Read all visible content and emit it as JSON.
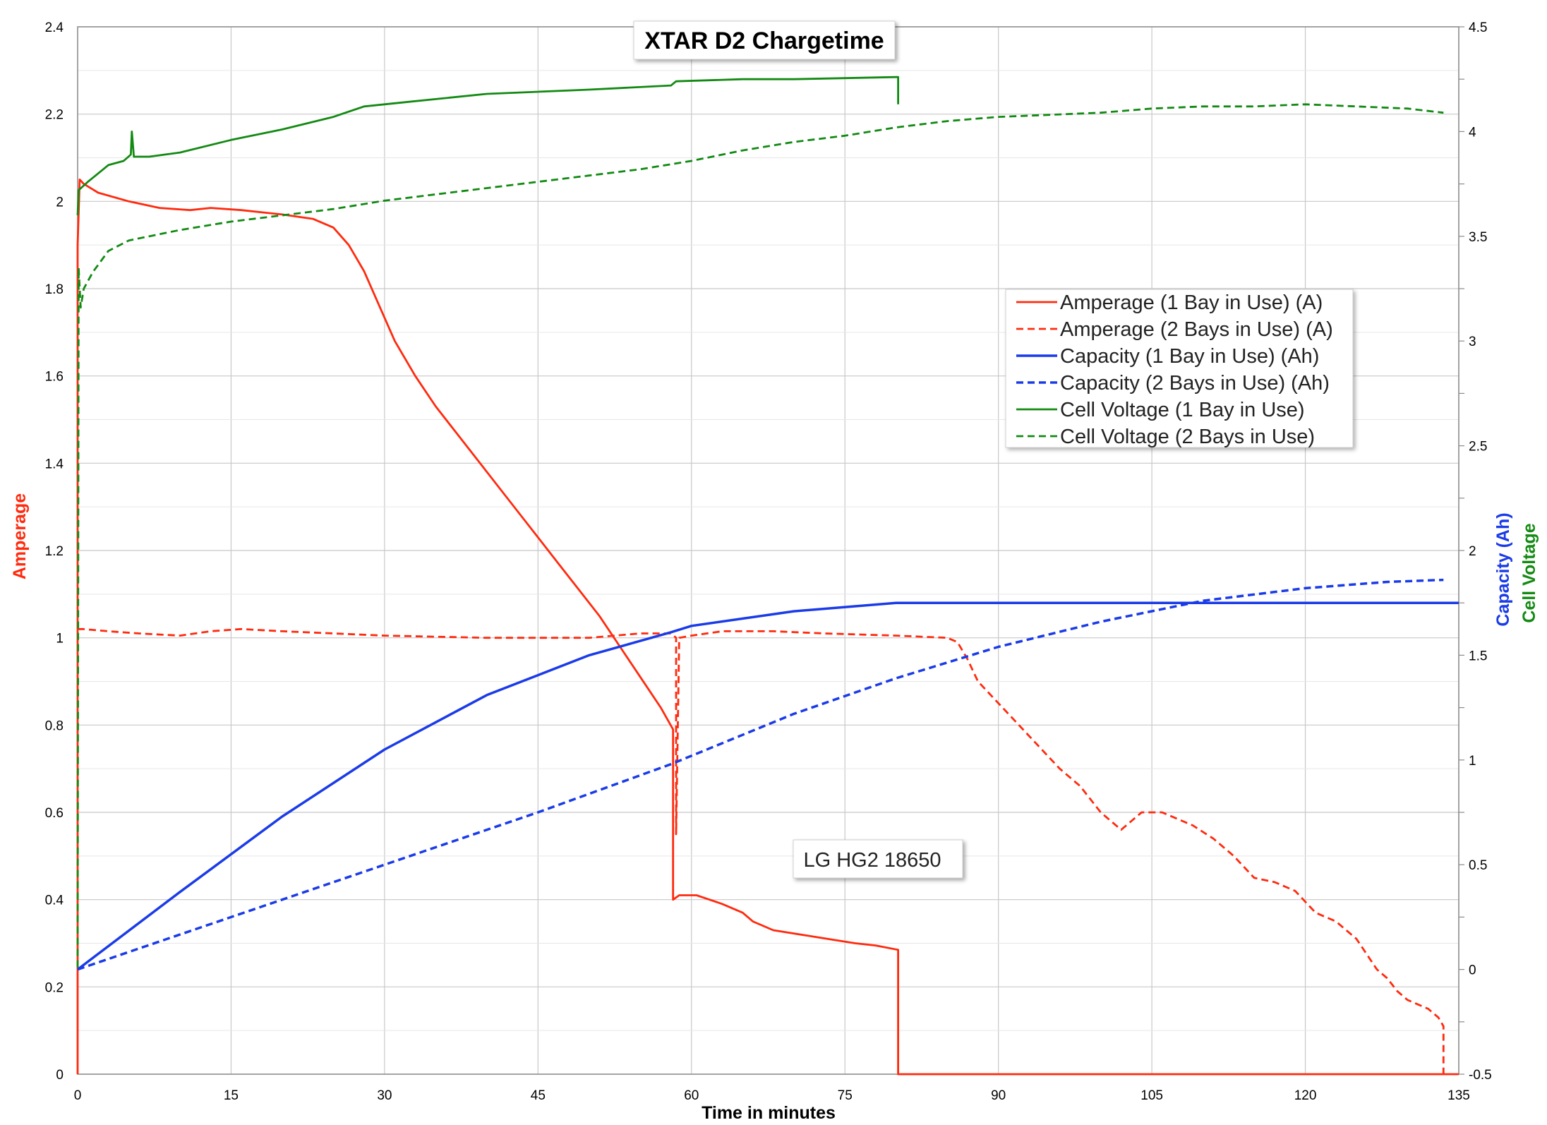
{
  "chart_data": {
    "type": "line",
    "title": "XTAR D2 Chargetime",
    "annotation": "LG HG2 18650",
    "xlabel": "Time in minutes",
    "ylabel_left": "Amperage",
    "ylabel_right_1": "Capacity (Ah)",
    "ylabel_right_2": "Cell Voltage",
    "xlim": [
      0,
      135
    ],
    "ylim_left": [
      0,
      2.4
    ],
    "ylim_right": [
      -0.5,
      4.5
    ],
    "x_ticks": [
      "0",
      "15",
      "30",
      "45",
      "60",
      "75",
      "90",
      "105",
      "120",
      "135"
    ],
    "y_left_ticks": [
      "0",
      "0.2",
      "0.4",
      "0.6",
      "0.8",
      "1",
      "1.2",
      "1.4",
      "1.6",
      "1.8",
      "2",
      "2.2",
      "2.4"
    ],
    "y_right_ticks": [
      "-0.5",
      "0",
      "0.5",
      "1",
      "1.5",
      "2",
      "2.5",
      "3",
      "3.5",
      "4",
      "4.5"
    ],
    "grid": true,
    "legend_position": "center-right",
    "colors": {
      "amperage": "#ff2a0e",
      "capacity": "#1a3be8",
      "voltage": "#138a13",
      "left_label": "#ff2a0e",
      "capacity_label": "#1a3be8",
      "voltage_label": "#138a13"
    },
    "series": [
      {
        "name": "Amperage (1 Bay in Use) (A)",
        "axis": "left",
        "style": "solid",
        "color": "#ff2a0e",
        "points": [
          [
            0,
            0
          ],
          [
            0,
            1.9
          ],
          [
            0.2,
            2.05
          ],
          [
            0.6,
            2.04
          ],
          [
            2,
            2.02
          ],
          [
            5,
            2.0
          ],
          [
            8,
            1.985
          ],
          [
            11,
            1.98
          ],
          [
            13,
            1.985
          ],
          [
            16,
            1.98
          ],
          [
            20,
            1.97
          ],
          [
            23,
            1.96
          ],
          [
            25,
            1.94
          ],
          [
            26.5,
            1.9
          ],
          [
            28,
            1.84
          ],
          [
            29.5,
            1.76
          ],
          [
            31,
            1.68
          ],
          [
            33,
            1.6
          ],
          [
            35,
            1.53
          ],
          [
            37,
            1.47
          ],
          [
            39,
            1.41
          ],
          [
            41,
            1.35
          ],
          [
            43,
            1.29
          ],
          [
            45,
            1.23
          ],
          [
            47,
            1.17
          ],
          [
            49,
            1.11
          ],
          [
            51,
            1.05
          ],
          [
            53,
            0.98
          ],
          [
            55,
            0.91
          ],
          [
            57,
            0.84
          ],
          [
            58.2,
            0.79
          ],
          [
            58.2,
            0.4
          ],
          [
            58.8,
            0.41
          ],
          [
            60.5,
            0.41
          ],
          [
            63,
            0.39
          ],
          [
            65,
            0.37
          ],
          [
            66,
            0.35
          ],
          [
            68,
            0.33
          ],
          [
            72,
            0.315
          ],
          [
            76,
            0.3
          ],
          [
            78,
            0.295
          ],
          [
            80.2,
            0.285
          ],
          [
            80.2,
            0
          ],
          [
            135,
            0
          ]
        ]
      },
      {
        "name": "Amperage (2 Bays in Use) (A)",
        "axis": "left",
        "style": "dashed",
        "color": "#ff2a0e",
        "points": [
          [
            0,
            1.02
          ],
          [
            0.5,
            1.02
          ],
          [
            3,
            1.015
          ],
          [
            6,
            1.01
          ],
          [
            10,
            1.005
          ],
          [
            13,
            1.015
          ],
          [
            16,
            1.02
          ],
          [
            20,
            1.015
          ],
          [
            25,
            1.01
          ],
          [
            30,
            1.005
          ],
          [
            40,
            1.0
          ],
          [
            50,
            1.0
          ],
          [
            55,
            1.01
          ],
          [
            58,
            1.01
          ],
          [
            58.5,
            1.0
          ],
          [
            58.5,
            0.55
          ],
          [
            58.8,
            1.0
          ],
          [
            60,
            1.005
          ],
          [
            63,
            1.015
          ],
          [
            68,
            1.015
          ],
          [
            73,
            1.01
          ],
          [
            80,
            1.005
          ],
          [
            85,
            1.0
          ],
          [
            86,
            0.99
          ],
          [
            87,
            0.95
          ],
          [
            88,
            0.9
          ],
          [
            90,
            0.85
          ],
          [
            92,
            0.8
          ],
          [
            94,
            0.75
          ],
          [
            96,
            0.7
          ],
          [
            98,
            0.66
          ],
          [
            100,
            0.6
          ],
          [
            102,
            0.56
          ],
          [
            104,
            0.6
          ],
          [
            106,
            0.6
          ],
          [
            107,
            0.59
          ],
          [
            109,
            0.57
          ],
          [
            111,
            0.54
          ],
          [
            113,
            0.5
          ],
          [
            115,
            0.45
          ],
          [
            117,
            0.44
          ],
          [
            119,
            0.42
          ],
          [
            121,
            0.37
          ],
          [
            123,
            0.35
          ],
          [
            125,
            0.31
          ],
          [
            127,
            0.24
          ],
          [
            128,
            0.22
          ],
          [
            129,
            0.19
          ],
          [
            130,
            0.17
          ],
          [
            132,
            0.15
          ],
          [
            133,
            0.13
          ],
          [
            133.5,
            0.11
          ],
          [
            133.5,
            0
          ]
        ]
      },
      {
        "name": "Capacity (1 Bay in Use) (Ah)",
        "axis": "right",
        "style": "solid",
        "color": "#1a3be8",
        "points": [
          [
            0,
            0
          ],
          [
            10,
            0.37
          ],
          [
            20,
            0.73
          ],
          [
            30,
            1.05
          ],
          [
            40,
            1.31
          ],
          [
            50,
            1.5
          ],
          [
            58,
            1.61
          ],
          [
            60,
            1.64
          ],
          [
            70,
            1.71
          ],
          [
            80,
            1.75
          ],
          [
            90,
            1.75
          ],
          [
            100,
            1.75
          ],
          [
            110,
            1.75
          ],
          [
            120,
            1.75
          ],
          [
            135,
            1.75
          ]
        ]
      },
      {
        "name": "Capacity (2 Bays in Use) (Ah)",
        "axis": "right",
        "style": "dashed",
        "color": "#1a3be8",
        "points": [
          [
            0,
            0
          ],
          [
            15,
            0.25
          ],
          [
            30,
            0.5
          ],
          [
            45,
            0.75
          ],
          [
            58,
            0.98
          ],
          [
            60,
            1.02
          ],
          [
            70,
            1.22
          ],
          [
            80,
            1.39
          ],
          [
            90,
            1.54
          ],
          [
            100,
            1.66
          ],
          [
            110,
            1.76
          ],
          [
            120,
            1.82
          ],
          [
            128,
            1.85
          ],
          [
            133.5,
            1.86
          ]
        ]
      },
      {
        "name": "Cell Voltage (1 Bay in Use)",
        "axis": "right",
        "style": "solid",
        "color": "#138a13",
        "points": [
          [
            0,
            3.6
          ],
          [
            0.1,
            3.72
          ],
          [
            1,
            3.76
          ],
          [
            2,
            3.8
          ],
          [
            3,
            3.84
          ],
          [
            4.5,
            3.86
          ],
          [
            5.2,
            3.89
          ],
          [
            5.3,
            4.0
          ],
          [
            5.5,
            3.88
          ],
          [
            7,
            3.88
          ],
          [
            10,
            3.9
          ],
          [
            15,
            3.96
          ],
          [
            20,
            4.01
          ],
          [
            25,
            4.07
          ],
          [
            28,
            4.12
          ],
          [
            32,
            4.14
          ],
          [
            40,
            4.18
          ],
          [
            50,
            4.2
          ],
          [
            58,
            4.22
          ],
          [
            58.5,
            4.24
          ],
          [
            65,
            4.25
          ],
          [
            70,
            4.25
          ],
          [
            75,
            4.255
          ],
          [
            80,
            4.26
          ],
          [
            80.2,
            4.26
          ],
          [
            80.2,
            4.13
          ]
        ]
      },
      {
        "name": "Cell Voltage (2 Bays in Use)",
        "axis": "right",
        "style": "dashed",
        "color": "#138a13",
        "points": [
          [
            0,
            0.01
          ],
          [
            0.1,
            3.35
          ],
          [
            0.3,
            3.16
          ],
          [
            0.6,
            3.25
          ],
          [
            1.5,
            3.33
          ],
          [
            3,
            3.43
          ],
          [
            5,
            3.48
          ],
          [
            10,
            3.53
          ],
          [
            15,
            3.57
          ],
          [
            20,
            3.6
          ],
          [
            25,
            3.63
          ],
          [
            30,
            3.67
          ],
          [
            35,
            3.7
          ],
          [
            40,
            3.73
          ],
          [
            45,
            3.76
          ],
          [
            50,
            3.79
          ],
          [
            55,
            3.82
          ],
          [
            60,
            3.86
          ],
          [
            65,
            3.91
          ],
          [
            70,
            3.95
          ],
          [
            75,
            3.98
          ],
          [
            80,
            4.02
          ],
          [
            85,
            4.05
          ],
          [
            90,
            4.07
          ],
          [
            95,
            4.08
          ],
          [
            100,
            4.09
          ],
          [
            105,
            4.11
          ],
          [
            110,
            4.12
          ],
          [
            115,
            4.12
          ],
          [
            120,
            4.13
          ],
          [
            125,
            4.12
          ],
          [
            130,
            4.11
          ],
          [
            133.5,
            4.09
          ]
        ]
      }
    ]
  }
}
